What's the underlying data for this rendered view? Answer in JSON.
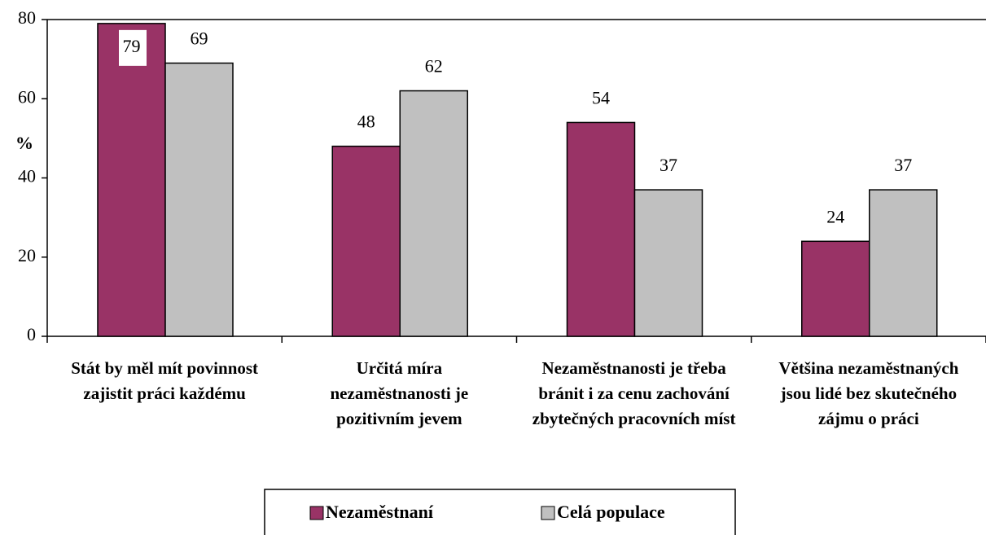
{
  "chart_data": {
    "type": "bar",
    "y_label": "%",
    "categories": [
      "Stát by měl mít povinnost zajistit práci každému",
      "Určitá míra nezaměstnanosti je pozitivním jevem",
      "Nezaměstnanosti je třeba bránit i za cenu zachování zbytečných pracovních míst",
      "Většina nezaměstnaných jsou lidé bez skutečného zájmu o práci"
    ],
    "series": [
      {
        "name": "Nezaměstnaní",
        "color": "#993366",
        "values": [
          79,
          48,
          54,
          24
        ]
      },
      {
        "name": "Celá populace",
        "color": "#c0c0c0",
        "values": [
          69,
          62,
          37,
          37
        ]
      }
    ],
    "ylim": [
      0,
      80
    ],
    "yticks": [
      0,
      20,
      40,
      60,
      80
    ]
  }
}
